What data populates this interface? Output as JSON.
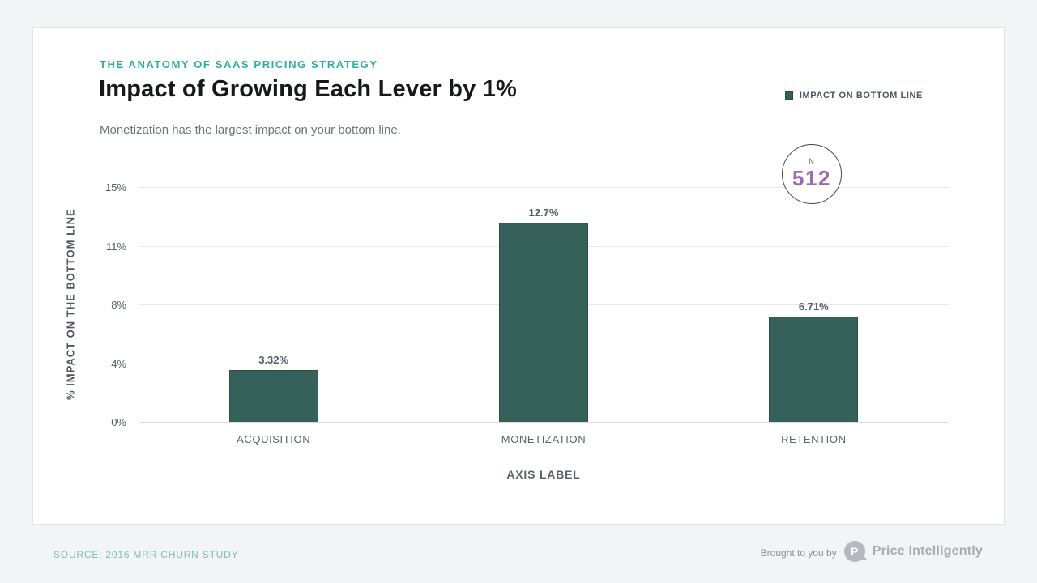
{
  "page": {
    "kicker": "THE ANATOMY OF SAAS PRICING STRATEGY",
    "title": "Impact of Growing Each Lever by 1%",
    "subtitle": "Monetization has the largest impact on your bottom line.",
    "legend_label": "IMPACT ON BOTTOM LINE",
    "sample": {
      "prefix": "N",
      "value": "512"
    },
    "footer": {
      "source": "SOURCE: 2016 MRR CHURN STUDY",
      "brought_by": "Brought to you by",
      "brand": "Price Intelligently",
      "logo_letter": "P"
    }
  },
  "colors": {
    "accent_teal": "#2bb099",
    "bar_green": "#35615a",
    "sample_purple": "#9c6bad",
    "source_teal": "#7cc0ae",
    "page_background": "#f2f4f5"
  },
  "chart_data": {
    "type": "bar",
    "title": "Impact of Growing Each Lever by 1%",
    "subtitle": "Monetization has the largest impact on your bottom line.",
    "categories": [
      "ACQUISITION",
      "MONETIZATION",
      "RETENTION"
    ],
    "values": [
      3.32,
      12.7,
      6.71
    ],
    "value_labels": [
      "3.32%",
      "12.7%",
      "6.71%"
    ],
    "xlabel": "AXIS LABEL",
    "ylabel": "% IMPACT ON THE BOTTOM LINE",
    "ylim": [
      0,
      15
    ],
    "ytick_labels": [
      "15%",
      "11%",
      "8%",
      "4%",
      "0%"
    ],
    "legend": [
      "IMPACT ON BOTTOM LINE"
    ],
    "legend_position": "top-right",
    "grid": true,
    "n": 512
  }
}
